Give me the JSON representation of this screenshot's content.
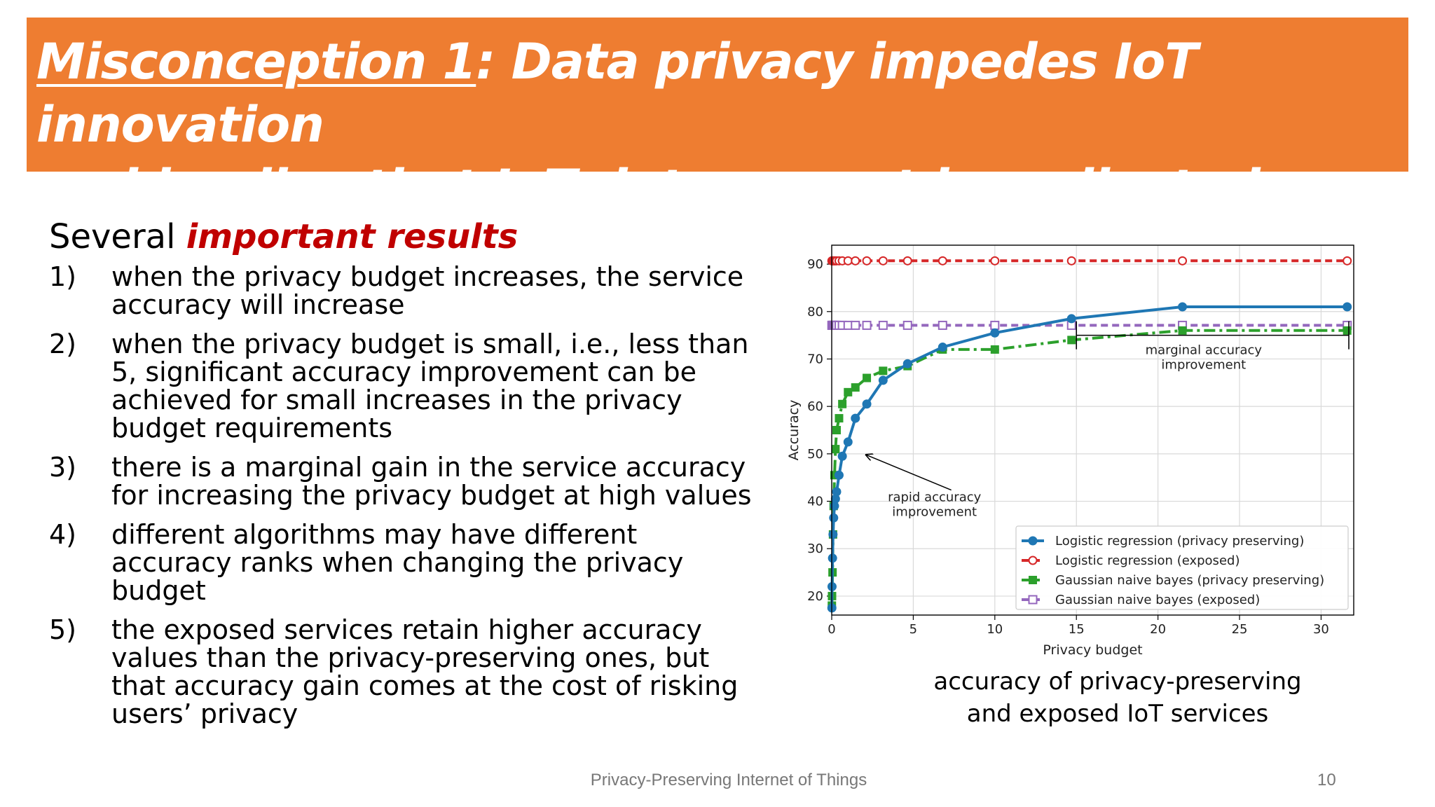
{
  "title": {
    "underlined": "Misconception 1",
    "rest_line1": ": Data privacy impedes IoT innovation",
    "line2": "and implies that IoT data cannot be collected"
  },
  "heading": {
    "prefix": "Several ",
    "emphasis": "important results"
  },
  "results": [
    {
      "num": "1)",
      "text": "when the privacy budget increases, the service accuracy will increase"
    },
    {
      "num": "2)",
      "text": "when the privacy budget is small, i.e., less than 5, significant accuracy improvement can be achieved for small increases in the privacy budget requirements"
    },
    {
      "num": "3)",
      "text": "there is a marginal gain in the service accuracy for increasing the privacy budget at high values"
    },
    {
      "num": "4)",
      "text": "different algorithms may have different accuracy ranks when changing the privacy budget"
    },
    {
      "num": "5)",
      "text": "the exposed services retain higher accuracy values than the privacy-preserving ones, but that accuracy gain comes at the cost of risking users’ privacy"
    }
  ],
  "caption": {
    "line1": "accuracy of privacy-preserving",
    "line2": "and exposed IoT services"
  },
  "footer": {
    "text": "Privacy-Preserving Internet of Things",
    "page": "10"
  },
  "colors": {
    "title_bg": "#ee7d31",
    "emphasis": "#c00000"
  },
  "chart_data": {
    "type": "line",
    "title": "",
    "xlabel": "Privacy budget",
    "ylabel": "Accuracy",
    "xlim": [
      0,
      32
    ],
    "ylim": [
      16,
      94
    ],
    "xticks": [
      0,
      5,
      10,
      15,
      20,
      25,
      30
    ],
    "yticks": [
      20,
      30,
      40,
      50,
      60,
      70,
      80,
      90
    ],
    "grid": true,
    "legend_position": "lower-right",
    "series": [
      {
        "name": "Logistic regression (privacy preserving)",
        "color": "#1f77b4",
        "style": "solid",
        "marker": "circle-filled",
        "x": [
          0.01,
          0.02,
          0.05,
          0.08,
          0.12,
          0.17,
          0.23,
          0.3,
          0.45,
          0.65,
          1.0,
          1.45,
          2.15,
          3.15,
          4.65,
          6.8,
          10.0,
          14.7,
          21.5,
          31.6
        ],
        "y": [
          17.5,
          22,
          28,
          33,
          36.5,
          39,
          40.5,
          42,
          45.5,
          49.5,
          52.5,
          57.5,
          60.5,
          65.5,
          69,
          72.5,
          75.5,
          78.5,
          81,
          81
        ]
      },
      {
        "name": "Logistic regression (exposed)",
        "color": "#d62728",
        "style": "dashed",
        "marker": "circle-open",
        "x": [
          0.01,
          0.02,
          0.05,
          0.08,
          0.12,
          0.17,
          0.23,
          0.3,
          0.45,
          0.65,
          1.0,
          1.45,
          2.15,
          3.15,
          4.65,
          6.8,
          10.0,
          14.7,
          21.5,
          31.6
        ],
        "y": [
          90.7,
          90.7,
          90.7,
          90.7,
          90.7,
          90.7,
          90.7,
          90.7,
          90.7,
          90.7,
          90.7,
          90.7,
          90.7,
          90.7,
          90.7,
          90.7,
          90.7,
          90.7,
          90.7,
          90.7
        ]
      },
      {
        "name": "Gaussian naive bayes (privacy preserving)",
        "color": "#2ca02c",
        "style": "dashdot",
        "marker": "square-filled",
        "x": [
          0.01,
          0.02,
          0.05,
          0.08,
          0.12,
          0.17,
          0.23,
          0.3,
          0.45,
          0.65,
          1.0,
          1.45,
          2.15,
          3.15,
          4.65,
          6.8,
          10.0,
          14.7,
          21.5,
          31.6
        ],
        "y": [
          18,
          20,
          25,
          33,
          39,
          45.5,
          51,
          55,
          57.5,
          60.5,
          63,
          64,
          66,
          67.5,
          68.5,
          72,
          72,
          74,
          76,
          76
        ]
      },
      {
        "name": "Gaussian naive bayes (exposed)",
        "color": "#9467bd",
        "style": "dashed",
        "marker": "square-open",
        "x": [
          0.01,
          0.02,
          0.05,
          0.08,
          0.12,
          0.17,
          0.23,
          0.3,
          0.45,
          0.65,
          1.0,
          1.45,
          2.15,
          3.15,
          4.65,
          6.8,
          10.0,
          14.7,
          21.5,
          31.6
        ],
        "y": [
          77.1,
          77.1,
          77.1,
          77.1,
          77.1,
          77.1,
          77.1,
          77.1,
          77.1,
          77.1,
          77.1,
          77.1,
          77.1,
          77.1,
          77.1,
          77.1,
          77.1,
          77.1,
          77.1,
          77.1
        ]
      }
    ],
    "annotations": [
      {
        "text_lines": [
          "rapid accuracy",
          "improvement"
        ],
        "text_at": [
          6.3,
          40
        ],
        "arrow_to": [
          2.1,
          49.8
        ]
      },
      {
        "text_lines": [
          "marginal accuracy",
          "improvement"
        ],
        "bracket_x": [
          15,
          31.7
        ],
        "bracket_y": 75,
        "text_at": [
          22.8,
          71
        ]
      }
    ]
  }
}
